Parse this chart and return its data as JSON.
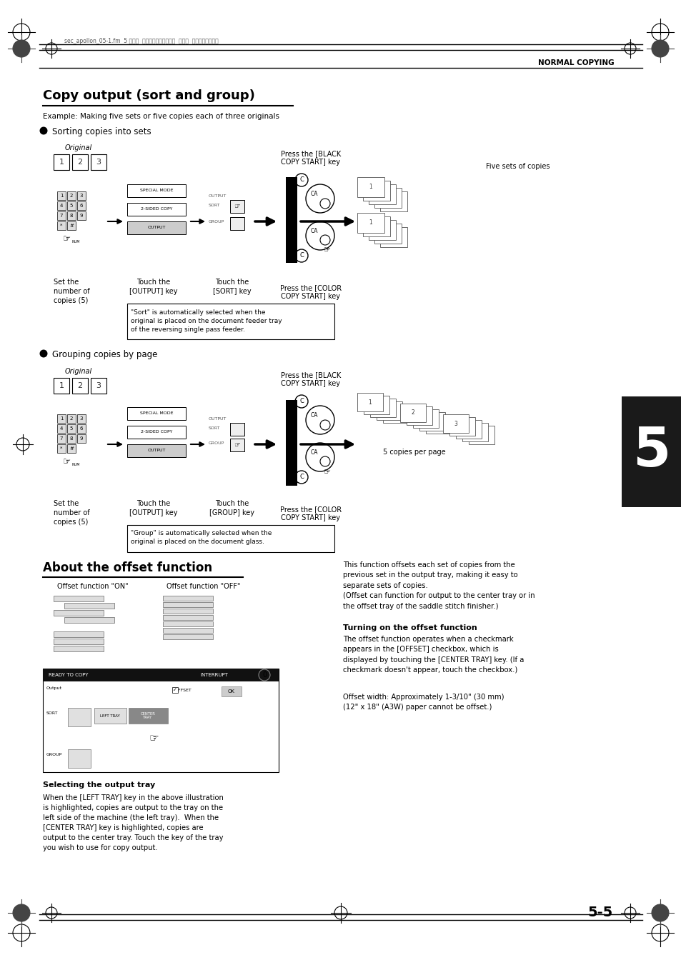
{
  "page_bg": "#ffffff",
  "header_text": "sec_apollon_05-1.fm  5 ページ  ２００４年９月１４日  火曜日  午前１０晎４８分",
  "header_right": "NORMAL COPYING",
  "title": "Copy output (sort and group)",
  "example_text": "Example: Making five sets or five copies each of three originals",
  "bullet1": "Sorting copies into sets",
  "bullet2": "Grouping copies by page",
  "section2_title": "About the offset function",
  "offset_on_label": "Offset function \"ON\"",
  "offset_off_label": "Offset function \"OFF\"",
  "selecting_output_tray_title": "Selecting the output tray",
  "selecting_output_tray_text": "When the [LEFT TRAY] key in the above illustration\nis highlighted, copies are output to the tray on the\nleft side of the machine (the left tray).  When the\n[CENTER TRAY] key is highlighted, copies are\noutput to the center tray. Touch the key of the tray\nyou wish to use for copy output.",
  "offset_desc": "This function offsets each set of copies from the\nprevious set in the output tray, making it easy to\nseparate sets of copies.\n(Offset can function for output to the center tray or in\nthe offset tray of the saddle stitch finisher.)",
  "turning_on_title": "Turning on the offset function",
  "turning_on_text": "The offset function operates when a checkmark\nappears in the [OFFSET] checkbox, which is\ndisplayed by touching the [CENTER TRAY] key. (If a\ncheckmark doesn't appear, touch the checkbox.)",
  "offset_width_text": "Offset width: Approximately 1-3/10\" (30 mm)\n(12\" x 18\" (A3W) paper cannot be offset.)",
  "sort_note": "\"Sort\" is automatically selected when the\noriginal is placed on the document feeder tray\nof the reversing single pass feeder.",
  "group_note": "\"Group\" is automatically selected when the\noriginal is placed on the document glass.",
  "five_sets_label": "Five sets of copies",
  "five_copies_label": "5 copies per page",
  "original_label": "Original",
  "set_number_label": "Set the\nnumber of\ncopies (5)",
  "touch_output_label": "Touch the\n[OUTPUT] key",
  "touch_sort_label": "Touch the\n[SORT] key",
  "touch_group_label": "Touch the\n[GROUP] key",
  "press_black_label": "Press the [BLACK\nCOPY START] key",
  "press_color_label1": "Press the [COLOR\nCOPY START] key",
  "press_color_label2": "Press the [COLOR\nCOPY START] key",
  "page_number": "5-5",
  "chapter_number": "5",
  "chapter_bg": "#1a1a1a"
}
